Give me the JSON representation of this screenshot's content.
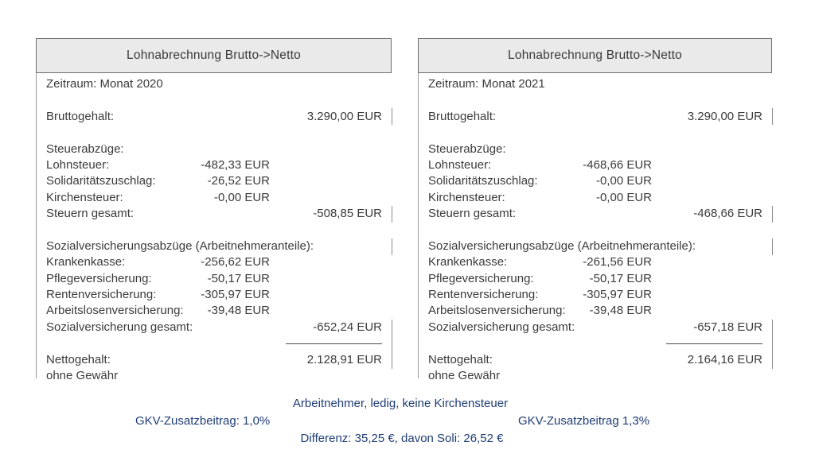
{
  "panels": [
    {
      "title": "Lohnabrechnung Brutto->Netto",
      "period": "Zeitraum: Monat 2020",
      "gross_label": "Bruttogehalt:",
      "gross_value": "3.290,00 EUR",
      "tax_section_label": "Steuerabzüge:",
      "tax_rows": [
        {
          "label": "Lohnsteuer:",
          "value": "-482,33 EUR"
        },
        {
          "label": "Solidaritätszuschlag:",
          "value": "-26,52 EUR"
        },
        {
          "label": "Kirchensteuer:",
          "value": "-0,00 EUR"
        }
      ],
      "tax_total_label": "Steuern gesamt:",
      "tax_total_value": "-508,85 EUR",
      "social_section_label": "Sozialversicherungsabzüge (Arbeitnehmeranteile):",
      "social_rows": [
        {
          "label": "Krankenkasse:",
          "value": "-256,62 EUR"
        },
        {
          "label": "Pflegeversicherung:",
          "value": "-50,17 EUR"
        },
        {
          "label": "Rentenversicherung:",
          "value": "-305,97 EUR"
        },
        {
          "label": "Arbeitslosenversicherung:",
          "value": "-39,48 EUR"
        }
      ],
      "social_total_label": "Sozialversicherung gesamt:",
      "social_total_value": "-652,24 EUR",
      "net_label": "Nettogehalt:",
      "net_value": "2.128,91 EUR",
      "disclaimer": "ohne Gewähr"
    },
    {
      "title": "Lohnabrechnung Brutto->Netto",
      "period": "Zeitraum: Monat 2021",
      "gross_label": "Bruttogehalt:",
      "gross_value": "3.290,00 EUR",
      "tax_section_label": "Steuerabzüge:",
      "tax_rows": [
        {
          "label": "Lohnsteuer:",
          "value": "-468,66 EUR"
        },
        {
          "label": "Solidaritätszuschlag:",
          "value": "-0,00 EUR"
        },
        {
          "label": "Kirchensteuer:",
          "value": "-0,00 EUR"
        }
      ],
      "tax_total_label": "Steuern gesamt:",
      "tax_total_value": "-468,66 EUR",
      "social_section_label": "Sozialversicherungsabzüge (Arbeitnehmeranteile):",
      "social_rows": [
        {
          "label": "Krankenkasse:",
          "value": "-261,56 EUR"
        },
        {
          "label": "Pflegeversicherung:",
          "value": "-50,17 EUR"
        },
        {
          "label": "Rentenversicherung:",
          "value": "-305,97 EUR"
        },
        {
          "label": "Arbeitslosenversicherung:",
          "value": "-39,48 EUR"
        }
      ],
      "social_total_label": "Sozialversicherung gesamt:",
      "social_total_value": "-657,18 EUR",
      "net_label": "Nettogehalt:",
      "net_value": "2.164,16 EUR",
      "disclaimer": "ohne Gewähr"
    }
  ],
  "footer": {
    "line1": "Arbeitnehmer, ledig, keine Kirchensteuer",
    "line2_left": "GKV-Zusatzbeitrag: 1,0%",
    "line2_right": "GKV-Zusatzbeitrag 1,3%",
    "line3": "Differenz: 35,25 €, davon Soli: 26,52 €"
  },
  "colors": {
    "annotation_blue": "#1f3d75",
    "header_bg": "#eaeaea",
    "border_gray": "#6e6e6e",
    "text": "#3b3b3b"
  }
}
